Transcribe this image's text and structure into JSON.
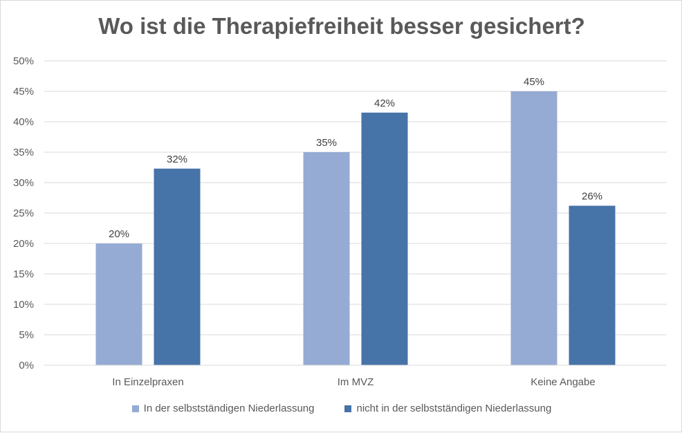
{
  "chart_data": {
    "type": "bar",
    "title": "Wo ist die Therapiefreiheit besser gesichert?",
    "categories": [
      "In Einzelpraxen",
      "Im MVZ",
      "Keine Angabe"
    ],
    "series": [
      {
        "name": "In der selbstständigen Niederlassung",
        "values": [
          20,
          35,
          45
        ],
        "labels": [
          "20%",
          "35%",
          "45%"
        ],
        "color": "#95abd4"
      },
      {
        "name": "nicht in der selbstständigen Niederlassung",
        "values": [
          32.3,
          41.5,
          26.2
        ],
        "labels": [
          "32%",
          "42%",
          "26%"
        ],
        "color": "#4673a8"
      }
    ],
    "ylim": [
      0,
      50
    ],
    "yticks": [
      0,
      5,
      10,
      15,
      20,
      25,
      30,
      35,
      40,
      45,
      50
    ],
    "ytick_labels": [
      "0%",
      "5%",
      "10%",
      "15%",
      "20%",
      "25%",
      "30%",
      "35%",
      "40%",
      "45%",
      "50%"
    ],
    "grid": true,
    "legend_position": "bottom"
  }
}
